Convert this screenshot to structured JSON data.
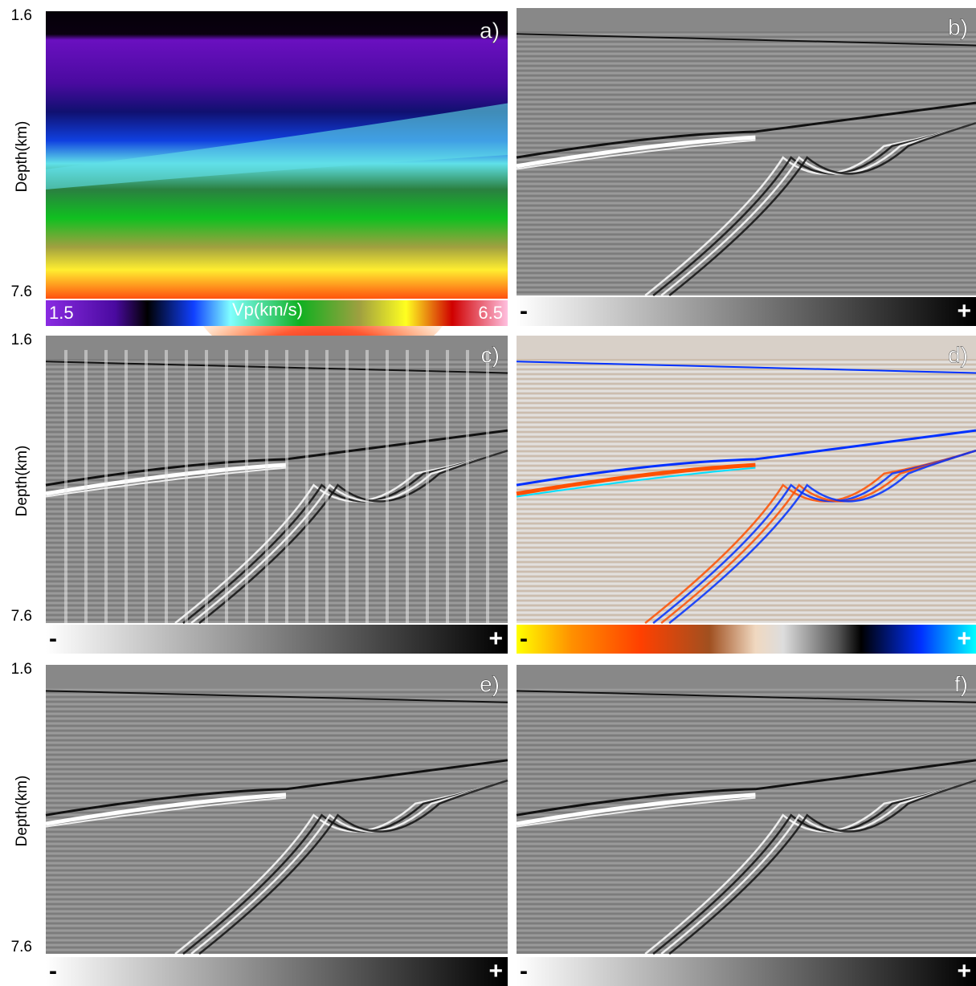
{
  "panels": [
    {
      "label": "a)",
      "depth_top": 1.6,
      "depth_bottom": 7.6,
      "depth_axis": "Depth(km)",
      "colorbar": {
        "min": 1.5,
        "title": "Vp(km/s)",
        "max": 6.5
      }
    },
    {
      "label": "b)",
      "colorbar": {
        "min": "-",
        "max": "+"
      }
    },
    {
      "label": "c)",
      "depth_top": 1.6,
      "depth_bottom": 7.6,
      "depth_axis": "Depth(km)",
      "colorbar": {
        "min": "-",
        "max": "+"
      }
    },
    {
      "label": "d)",
      "colorbar": {
        "min": "-",
        "max": "+"
      }
    },
    {
      "label": "e)",
      "depth_top": 1.6,
      "depth_bottom": 7.6,
      "depth_axis": "Depth(km)",
      "colorbar": {
        "min": "-",
        "max": "+"
      }
    },
    {
      "label": "f)",
      "colorbar": {
        "min": "-",
        "max": "+"
      }
    }
  ]
}
